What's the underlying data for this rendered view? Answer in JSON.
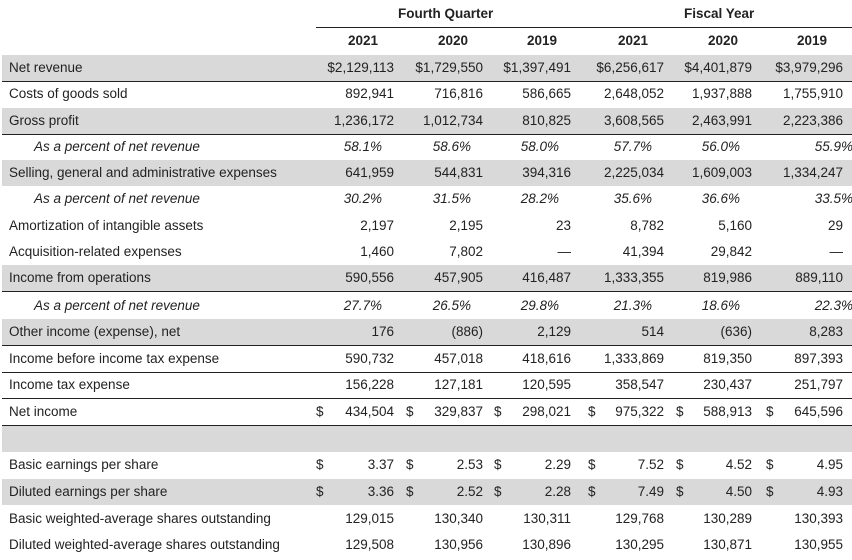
{
  "header": {
    "fourth_quarter": "Fourth Quarter",
    "fiscal_year": "Fiscal Year",
    "years": [
      "2021",
      "2020",
      "2019",
      "2021",
      "2020",
      "2019"
    ]
  },
  "rows": [
    {
      "label": "Net revenue",
      "values": [
        "$2,129,113",
        "$1,729,550",
        "$1,397,491",
        "$6,256,617",
        "$4,401,879",
        "$3,979,296"
      ]
    },
    {
      "label": "Costs of goods sold",
      "values": [
        "892,941",
        "716,816",
        "586,665",
        "2,648,052",
        "1,937,888",
        "1,755,910"
      ]
    },
    {
      "label": "Gross profit",
      "values": [
        "1,236,172",
        "1,012,734",
        "810,825",
        "3,608,565",
        "2,463,991",
        "2,223,386"
      ]
    },
    {
      "label": "As a percent of net revenue",
      "values": [
        "58.1%",
        "58.6%",
        "58.0%",
        "57.7%",
        "56.0%",
        "55.9%"
      ]
    },
    {
      "label": "Selling, general and administrative expenses",
      "values": [
        "641,959",
        "544,831",
        "394,316",
        "2,225,034",
        "1,609,003",
        "1,334,247"
      ]
    },
    {
      "label": "As a percent of net revenue",
      "values": [
        "30.2%",
        "31.5%",
        "28.2%",
        "35.6%",
        "36.6%",
        "33.5%"
      ]
    },
    {
      "label": "Amortization of intangible assets",
      "values": [
        "2,197",
        "2,195",
        "23",
        "8,782",
        "5,160",
        "29"
      ]
    },
    {
      "label": "Acquisition-related expenses",
      "values": [
        "1,460",
        "7,802",
        "—",
        "41,394",
        "29,842",
        "—"
      ]
    },
    {
      "label": "Income from operations",
      "values": [
        "590,556",
        "457,905",
        "416,487",
        "1,333,355",
        "819,986",
        "889,110"
      ]
    },
    {
      "label": "As a percent of net revenue",
      "values": [
        "27.7%",
        "26.5%",
        "29.8%",
        "21.3%",
        "18.6%",
        "22.3%"
      ]
    },
    {
      "label": "Other income (expense), net",
      "values": [
        "176",
        "(886)",
        "2,129",
        "514",
        "(636)",
        "8,283"
      ]
    },
    {
      "label": "Income before income tax expense",
      "values": [
        "590,732",
        "457,018",
        "418,616",
        "1,333,869",
        "819,350",
        "897,393"
      ]
    },
    {
      "label": "Income tax expense",
      "values": [
        "156,228",
        "127,181",
        "120,595",
        "358,547",
        "230,437",
        "251,797"
      ]
    },
    {
      "label": "Net income",
      "values": [
        "434,504",
        "329,837",
        "298,021",
        "975,322",
        "588,913",
        "645,596"
      ]
    },
    {
      "label": "",
      "values": [
        "",
        "",
        "",
        "",
        "",
        ""
      ]
    },
    {
      "label": "Basic earnings per share",
      "values": [
        "3.37",
        "2.53",
        "2.29",
        "7.52",
        "4.52",
        "4.95"
      ]
    },
    {
      "label": "Diluted earnings per share",
      "values": [
        "3.36",
        "2.52",
        "2.28",
        "7.49",
        "4.50",
        "4.93"
      ]
    },
    {
      "label": "Basic weighted-average shares outstanding",
      "values": [
        "129,015",
        "130,340",
        "130,311",
        "129,768",
        "130,289",
        "130,393"
      ]
    },
    {
      "label": "Diluted weighted-average shares outstanding",
      "values": [
        "129,508",
        "130,956",
        "130,896",
        "130,295",
        "130,871",
        "130,955"
      ]
    }
  ],
  "currency_symbol": "$"
}
